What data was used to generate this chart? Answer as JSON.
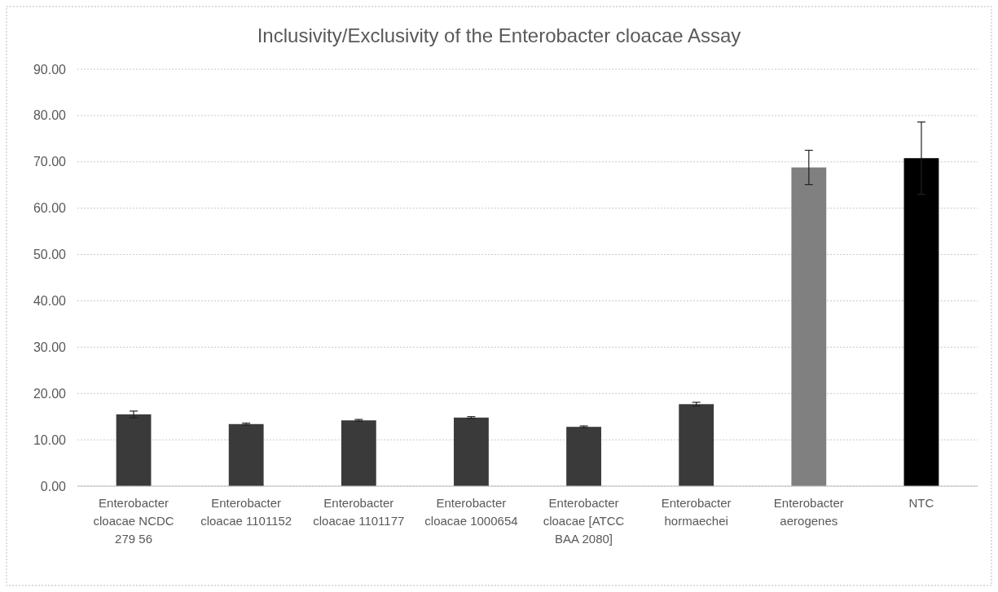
{
  "chart_data": {
    "type": "bar",
    "title": "Inclusivity/Exclusivity of the Enterobacter cloacae Assay",
    "categories": [
      "Enterobacter cloacae NCDC 279 56",
      "Enterobacter cloacae 1101152",
      "Enterobacter cloacae 1101177",
      "Enterobacter cloacae 1000654",
      "Enterobacter cloacae [ATCC BAA 2080]",
      "Enterobacter hormaechei",
      "Enterobacter aerogenes",
      "NTC"
    ],
    "values": [
      15.5,
      13.4,
      14.2,
      14.8,
      12.8,
      17.7,
      68.8,
      70.8
    ],
    "errors": [
      0.7,
      0.2,
      0.2,
      0.2,
      0.2,
      0.4,
      3.7,
      7.8
    ],
    "colors": [
      "#3a3a3a",
      "#3a3a3a",
      "#3a3a3a",
      "#3a3a3a",
      "#3a3a3a",
      "#3a3a3a",
      "#808080",
      "#000000"
    ],
    "ylim": [
      0,
      90
    ],
    "yticks": [
      {
        "value": 0,
        "label": "0.00"
      },
      {
        "value": 10,
        "label": "10.00"
      },
      {
        "value": 20,
        "label": "20.00"
      },
      {
        "value": 30,
        "label": "30.00"
      },
      {
        "value": 40,
        "label": "40.00"
      },
      {
        "value": 50,
        "label": "50.00"
      },
      {
        "value": 60,
        "label": "60.00"
      },
      {
        "value": 70,
        "label": "70.00"
      },
      {
        "value": 80,
        "label": "80.00"
      },
      {
        "value": 90,
        "label": "90.00"
      }
    ],
    "grid": "y"
  }
}
